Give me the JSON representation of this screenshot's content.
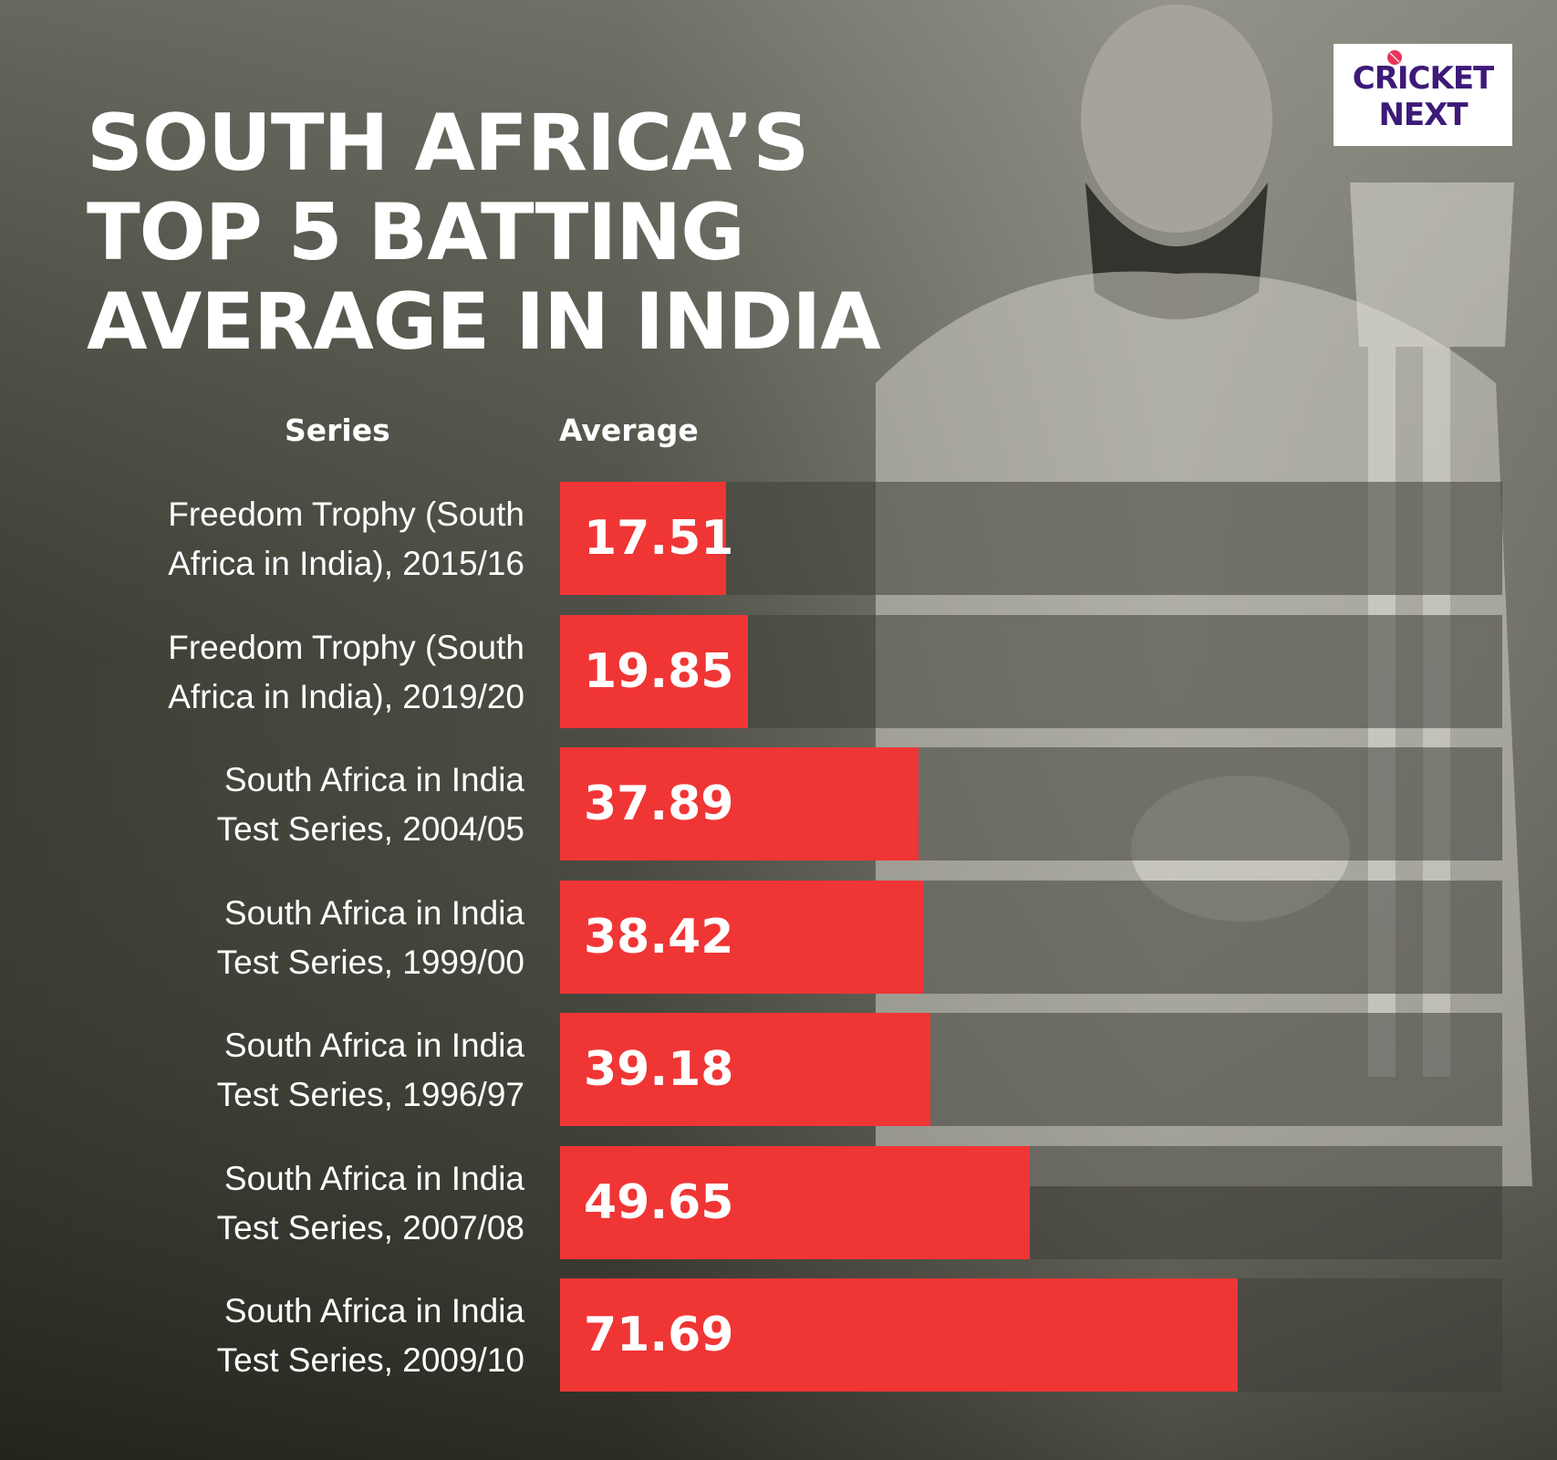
{
  "title": "SOUTH AFRICA’S TOP 5 BATTING AVERAGE IN INDIA",
  "logo": {
    "line1": "CRICKET",
    "line2": "NEXT"
  },
  "colors": {
    "bar": "#f03535",
    "background": "#2c2c24",
    "logo_text": "#3d1a78",
    "logo_ball": "#e8355a"
  },
  "chart_data": {
    "type": "bar",
    "orientation": "horizontal",
    "title": "SOUTH AFRICA’S TOP 5 BATTING AVERAGE IN INDIA",
    "xlabel": "Average",
    "ylabel": "Series",
    "xlim": [
      0,
      100
    ],
    "grid": false,
    "legend": "none",
    "categories": [
      [
        "Freedom Trophy (South",
        "Africa in India), 2015/16"
      ],
      [
        "Freedom Trophy (South",
        "Africa in India), 2019/20"
      ],
      [
        "South Africa in India",
        "Test Series, 2004/05"
      ],
      [
        "South Africa in India",
        "Test Series, 1999/00"
      ],
      [
        "South Africa in India",
        "Test Series, 1996/97"
      ],
      [
        "South Africa in India",
        "Test Series, 2007/08"
      ],
      [
        "South Africa in India",
        "Test Series, 2009/10"
      ]
    ],
    "values": [
      17.51,
      19.85,
      37.89,
      38.42,
      39.18,
      49.65,
      71.69
    ],
    "value_labels": [
      "17.51",
      "19.85",
      "37.89",
      "38.42",
      "39.18",
      "49.65",
      "71.69"
    ]
  }
}
